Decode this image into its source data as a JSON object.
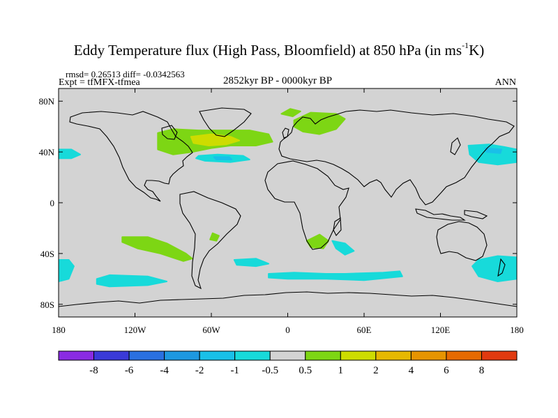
{
  "title": {
    "main": "Eddy Temperature flux (High Pass, Bloomfield) at 850 hPa (in ms",
    "sup": "-1",
    "end": "K)"
  },
  "stats": {
    "rmsd_label": "rmsd= 0.26513  diff= -0.0342563"
  },
  "experiment": {
    "label": "Expt = tfMFX-tfmea"
  },
  "period": {
    "label": "2852kyr BP - 0000kyr BP"
  },
  "season": {
    "label": "ANN"
  },
  "map": {
    "lon_range": [
      -180,
      180
    ],
    "lat_range": [
      -90,
      90
    ],
    "land_sea_color": "#d3d3d3",
    "x_ticks": [
      {
        "value": -180,
        "label": "180"
      },
      {
        "value": -120,
        "label": "120W"
      },
      {
        "value": -60,
        "label": "60W"
      },
      {
        "value": 0,
        "label": "0"
      },
      {
        "value": 60,
        "label": "60E"
      },
      {
        "value": 120,
        "label": "120E"
      },
      {
        "value": 180,
        "label": "180"
      }
    ],
    "y_ticks": [
      {
        "value": 80,
        "label": "80N"
      },
      {
        "value": 40,
        "label": "40N"
      },
      {
        "value": 0,
        "label": "0"
      },
      {
        "value": -40,
        "label": "40S"
      },
      {
        "value": -80,
        "label": "80S"
      }
    ]
  },
  "chart_data": {
    "type": "map-contour",
    "variable": "Eddy temperature flux difference (ms-1 K)",
    "colorbar": {
      "colors": [
        "#8a2be2",
        "#3a3ad8",
        "#2a70e0",
        "#1e98e0",
        "#19c0e8",
        "#17dada",
        "#d3d3d3",
        "#7dd614",
        "#cddc00",
        "#e6b800",
        "#e69400",
        "#e66a00",
        "#e03a10"
      ],
      "labels": [
        "-8",
        "-6",
        "-4",
        "-2",
        "-1",
        "-0.5",
        "0.5",
        "1",
        "2",
        "4",
        "6",
        "8"
      ]
    },
    "regions": [
      {
        "name": "north-atlantic-positive",
        "level": "1 to 2",
        "color": "#7dd614",
        "polygon": [
          [
            -102,
            55
          ],
          [
            -90,
            58
          ],
          [
            -70,
            57
          ],
          [
            -50,
            57
          ],
          [
            -30,
            57
          ],
          [
            -15,
            54
          ],
          [
            -12,
            48
          ],
          [
            -25,
            45
          ],
          [
            -45,
            45
          ],
          [
            -60,
            43
          ],
          [
            -75,
            40
          ],
          [
            -90,
            38
          ],
          [
            -102,
            42
          ]
        ]
      },
      {
        "name": "north-atlantic-core",
        "level": "2 to 4",
        "color": "#cddc00",
        "polygon": [
          [
            -76,
            52
          ],
          [
            -60,
            54
          ],
          [
            -45,
            52
          ],
          [
            -38,
            49
          ],
          [
            -48,
            46
          ],
          [
            -62,
            45
          ],
          [
            -74,
            47
          ]
        ]
      },
      {
        "name": "scandinavia-positive",
        "level": "1 to 2",
        "color": "#7dd614",
        "polygon": [
          [
            5,
            65
          ],
          [
            18,
            71
          ],
          [
            38,
            70
          ],
          [
            45,
            66
          ],
          [
            38,
            58
          ],
          [
            25,
            54
          ],
          [
            12,
            56
          ],
          [
            5,
            60
          ]
        ]
      },
      {
        "name": "barents-positive",
        "level": "1 to 2",
        "color": "#7dd614",
        "polygon": [
          [
            -5,
            70
          ],
          [
            2,
            74
          ],
          [
            10,
            72
          ],
          [
            4,
            68
          ]
        ]
      },
      {
        "name": "south-pacific-positive",
        "level": "1 to 2",
        "color": "#7dd614",
        "polygon": [
          [
            -130,
            -27
          ],
          [
            -110,
            -27
          ],
          [
            -95,
            -32
          ],
          [
            -80,
            -40
          ],
          [
            -75,
            -44
          ],
          [
            -82,
            -46
          ],
          [
            -100,
            -40
          ],
          [
            -118,
            -36
          ],
          [
            -130,
            -31
          ]
        ]
      },
      {
        "name": "south-america-positive",
        "level": "1 to 2",
        "color": "#7dd614",
        "polygon": [
          [
            -59,
            -24
          ],
          [
            -54,
            -26
          ],
          [
            -56,
            -30
          ],
          [
            -61,
            -29
          ]
        ]
      },
      {
        "name": "south-africa-positive",
        "level": "1 to 2",
        "color": "#7dd614",
        "polygon": [
          [
            15,
            -30
          ],
          [
            25,
            -25
          ],
          [
            32,
            -30
          ],
          [
            28,
            -36
          ],
          [
            18,
            -35
          ]
        ]
      },
      {
        "name": "gulf-stream-negative",
        "level": "-1 to -0.5",
        "color": "#17dada",
        "polygon": [
          [
            -70,
            37
          ],
          [
            -55,
            38
          ],
          [
            -35,
            37
          ],
          [
            -30,
            34
          ],
          [
            -45,
            32
          ],
          [
            -65,
            33
          ],
          [
            -72,
            35
          ]
        ]
      },
      {
        "name": "gulf-stream-core",
        "level": "-2 to -1",
        "color": "#19c0e8",
        "polygon": [
          [
            -58,
            36
          ],
          [
            -46,
            36
          ],
          [
            -44,
            34
          ],
          [
            -56,
            34
          ]
        ]
      },
      {
        "name": "north-pacific-east-negative",
        "level": "-1 to -0.5",
        "color": "#17dada",
        "polygon": [
          [
            -180,
            42
          ],
          [
            -170,
            42
          ],
          [
            -163,
            38
          ],
          [
            -170,
            35
          ],
          [
            -180,
            35
          ]
        ]
      },
      {
        "name": "north-pacific-west-negative",
        "level": "-1 to -0.5",
        "color": "#17dada",
        "polygon": [
          [
            142,
            45
          ],
          [
            158,
            46
          ],
          [
            170,
            44
          ],
          [
            180,
            42
          ],
          [
            180,
            32
          ],
          [
            165,
            30
          ],
          [
            150,
            32
          ],
          [
            143,
            38
          ]
        ]
      },
      {
        "name": "north-pacific-west-core",
        "level": "-2 to -1",
        "color": "#19c0e8",
        "polygon": [
          [
            155,
            43
          ],
          [
            168,
            42
          ],
          [
            167,
            39
          ],
          [
            156,
            40
          ]
        ]
      },
      {
        "name": "south-pacific-west-negative",
        "level": "-1 to -0.5",
        "color": "#17dada",
        "polygon": [
          [
            -180,
            -45
          ],
          [
            -172,
            -45
          ],
          [
            -168,
            -50
          ],
          [
            -172,
            -60
          ],
          [
            -180,
            -62
          ]
        ]
      },
      {
        "name": "southern-ocean-negative",
        "level": "-1 to -0.5",
        "color": "#17dada",
        "polygon": [
          [
            -150,
            -60
          ],
          [
            -140,
            -57
          ],
          [
            -110,
            -58
          ],
          [
            -95,
            -62
          ],
          [
            -110,
            -65
          ],
          [
            -140,
            -66
          ],
          [
            -150,
            -64
          ]
        ]
      },
      {
        "name": "south-atlantic-negative",
        "level": "-1 to -0.5",
        "color": "#17dada",
        "polygon": [
          [
            -42,
            -45
          ],
          [
            -25,
            -44
          ],
          [
            -15,
            -48
          ],
          [
            -25,
            -50
          ],
          [
            -40,
            -49
          ]
        ]
      },
      {
        "name": "south-indian-negative",
        "level": "-1 to -0.5",
        "color": "#17dada",
        "polygon": [
          [
            -15,
            -56
          ],
          [
            5,
            -55
          ],
          [
            30,
            -56
          ],
          [
            45,
            -56
          ],
          [
            75,
            -55
          ],
          [
            88,
            -54
          ],
          [
            90,
            -58
          ],
          [
            60,
            -61
          ],
          [
            30,
            -60
          ],
          [
            0,
            -60
          ],
          [
            -15,
            -59
          ]
        ]
      },
      {
        "name": "mozambique-negative",
        "level": "-1 to -0.5",
        "color": "#17dada",
        "polygon": [
          [
            35,
            -30
          ],
          [
            45,
            -32
          ],
          [
            52,
            -38
          ],
          [
            45,
            -41
          ],
          [
            38,
            -36
          ]
        ]
      },
      {
        "name": "tasman-negative",
        "level": "-1 to -0.5",
        "color": "#17dada",
        "polygon": [
          [
            150,
            -45
          ],
          [
            165,
            -42
          ],
          [
            180,
            -43
          ],
          [
            180,
            -60
          ],
          [
            165,
            -62
          ],
          [
            150,
            -58
          ],
          [
            145,
            -50
          ]
        ]
      }
    ]
  }
}
